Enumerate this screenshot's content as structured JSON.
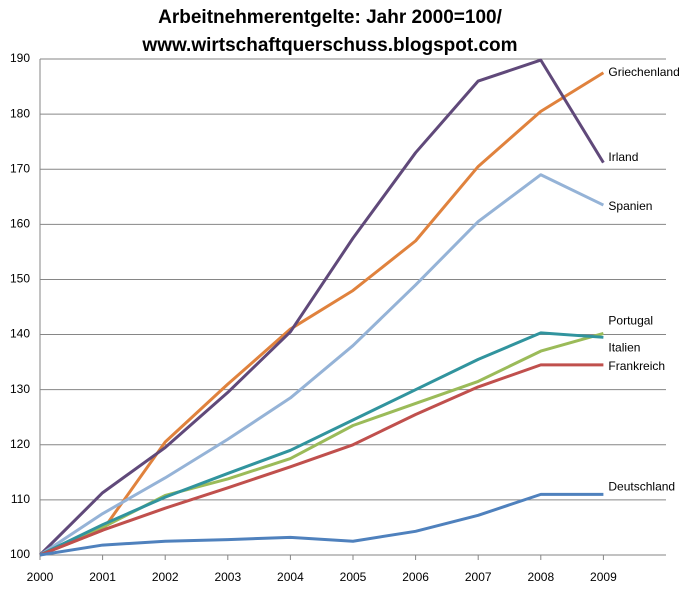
{
  "chart_data": {
    "type": "line",
    "title": [
      "Arbeitnehmerentgelte: Jahr 2000=100/",
      "www.wirtschaftquerschuss.blogspot.com"
    ],
    "x": [
      2000,
      2001,
      2002,
      2003,
      2004,
      2005,
      2006,
      2007,
      2008,
      2009
    ],
    "xlim": [
      2000,
      2010
    ],
    "xticks": [
      2000,
      2001,
      2002,
      2003,
      2004,
      2005,
      2006,
      2007,
      2008,
      2009
    ],
    "ylim": [
      100,
      190
    ],
    "yticks": [
      100,
      110,
      120,
      130,
      140,
      150,
      160,
      170,
      180,
      190
    ],
    "grid": true,
    "series": [
      {
        "name": "Griechenland",
        "color": "#e0823d",
        "values": [
          100,
          104.5,
          120.5,
          131,
          141,
          148,
          157,
          170.5,
          180.5,
          187.5
        ]
      },
      {
        "name": "Irland",
        "color": "#60497a",
        "values": [
          100,
          111.3,
          119.5,
          129.5,
          140.5,
          157.5,
          173,
          186,
          189.8,
          171.2
        ]
      },
      {
        "name": "Spanien",
        "color": "#95b3d7",
        "values": [
          100,
          107.5,
          114,
          121,
          128.5,
          138,
          149,
          160.5,
          169,
          163.5
        ]
      },
      {
        "name": "Portugal",
        "color": "#9bbb59",
        "values": [
          100,
          105,
          110.8,
          113.8,
          117.5,
          123.5,
          127.5,
          131.5,
          137,
          140.2
        ]
      },
      {
        "name": "Italien",
        "color": "#31949e",
        "values": [
          100,
          105.5,
          110.5,
          114.8,
          119,
          124.5,
          130,
          135.5,
          140.3,
          139.5
        ]
      },
      {
        "name": "Frankreich",
        "color": "#c0504d",
        "values": [
          100,
          104.5,
          108.5,
          112.2,
          116,
          120,
          125.5,
          130.5,
          134.5,
          134.5
        ]
      },
      {
        "name": "Deutschland",
        "color": "#4f81bd",
        "values": [
          100,
          101.8,
          102.5,
          102.8,
          103.2,
          102.5,
          104.3,
          107.2,
          111,
          111
        ]
      }
    ]
  }
}
